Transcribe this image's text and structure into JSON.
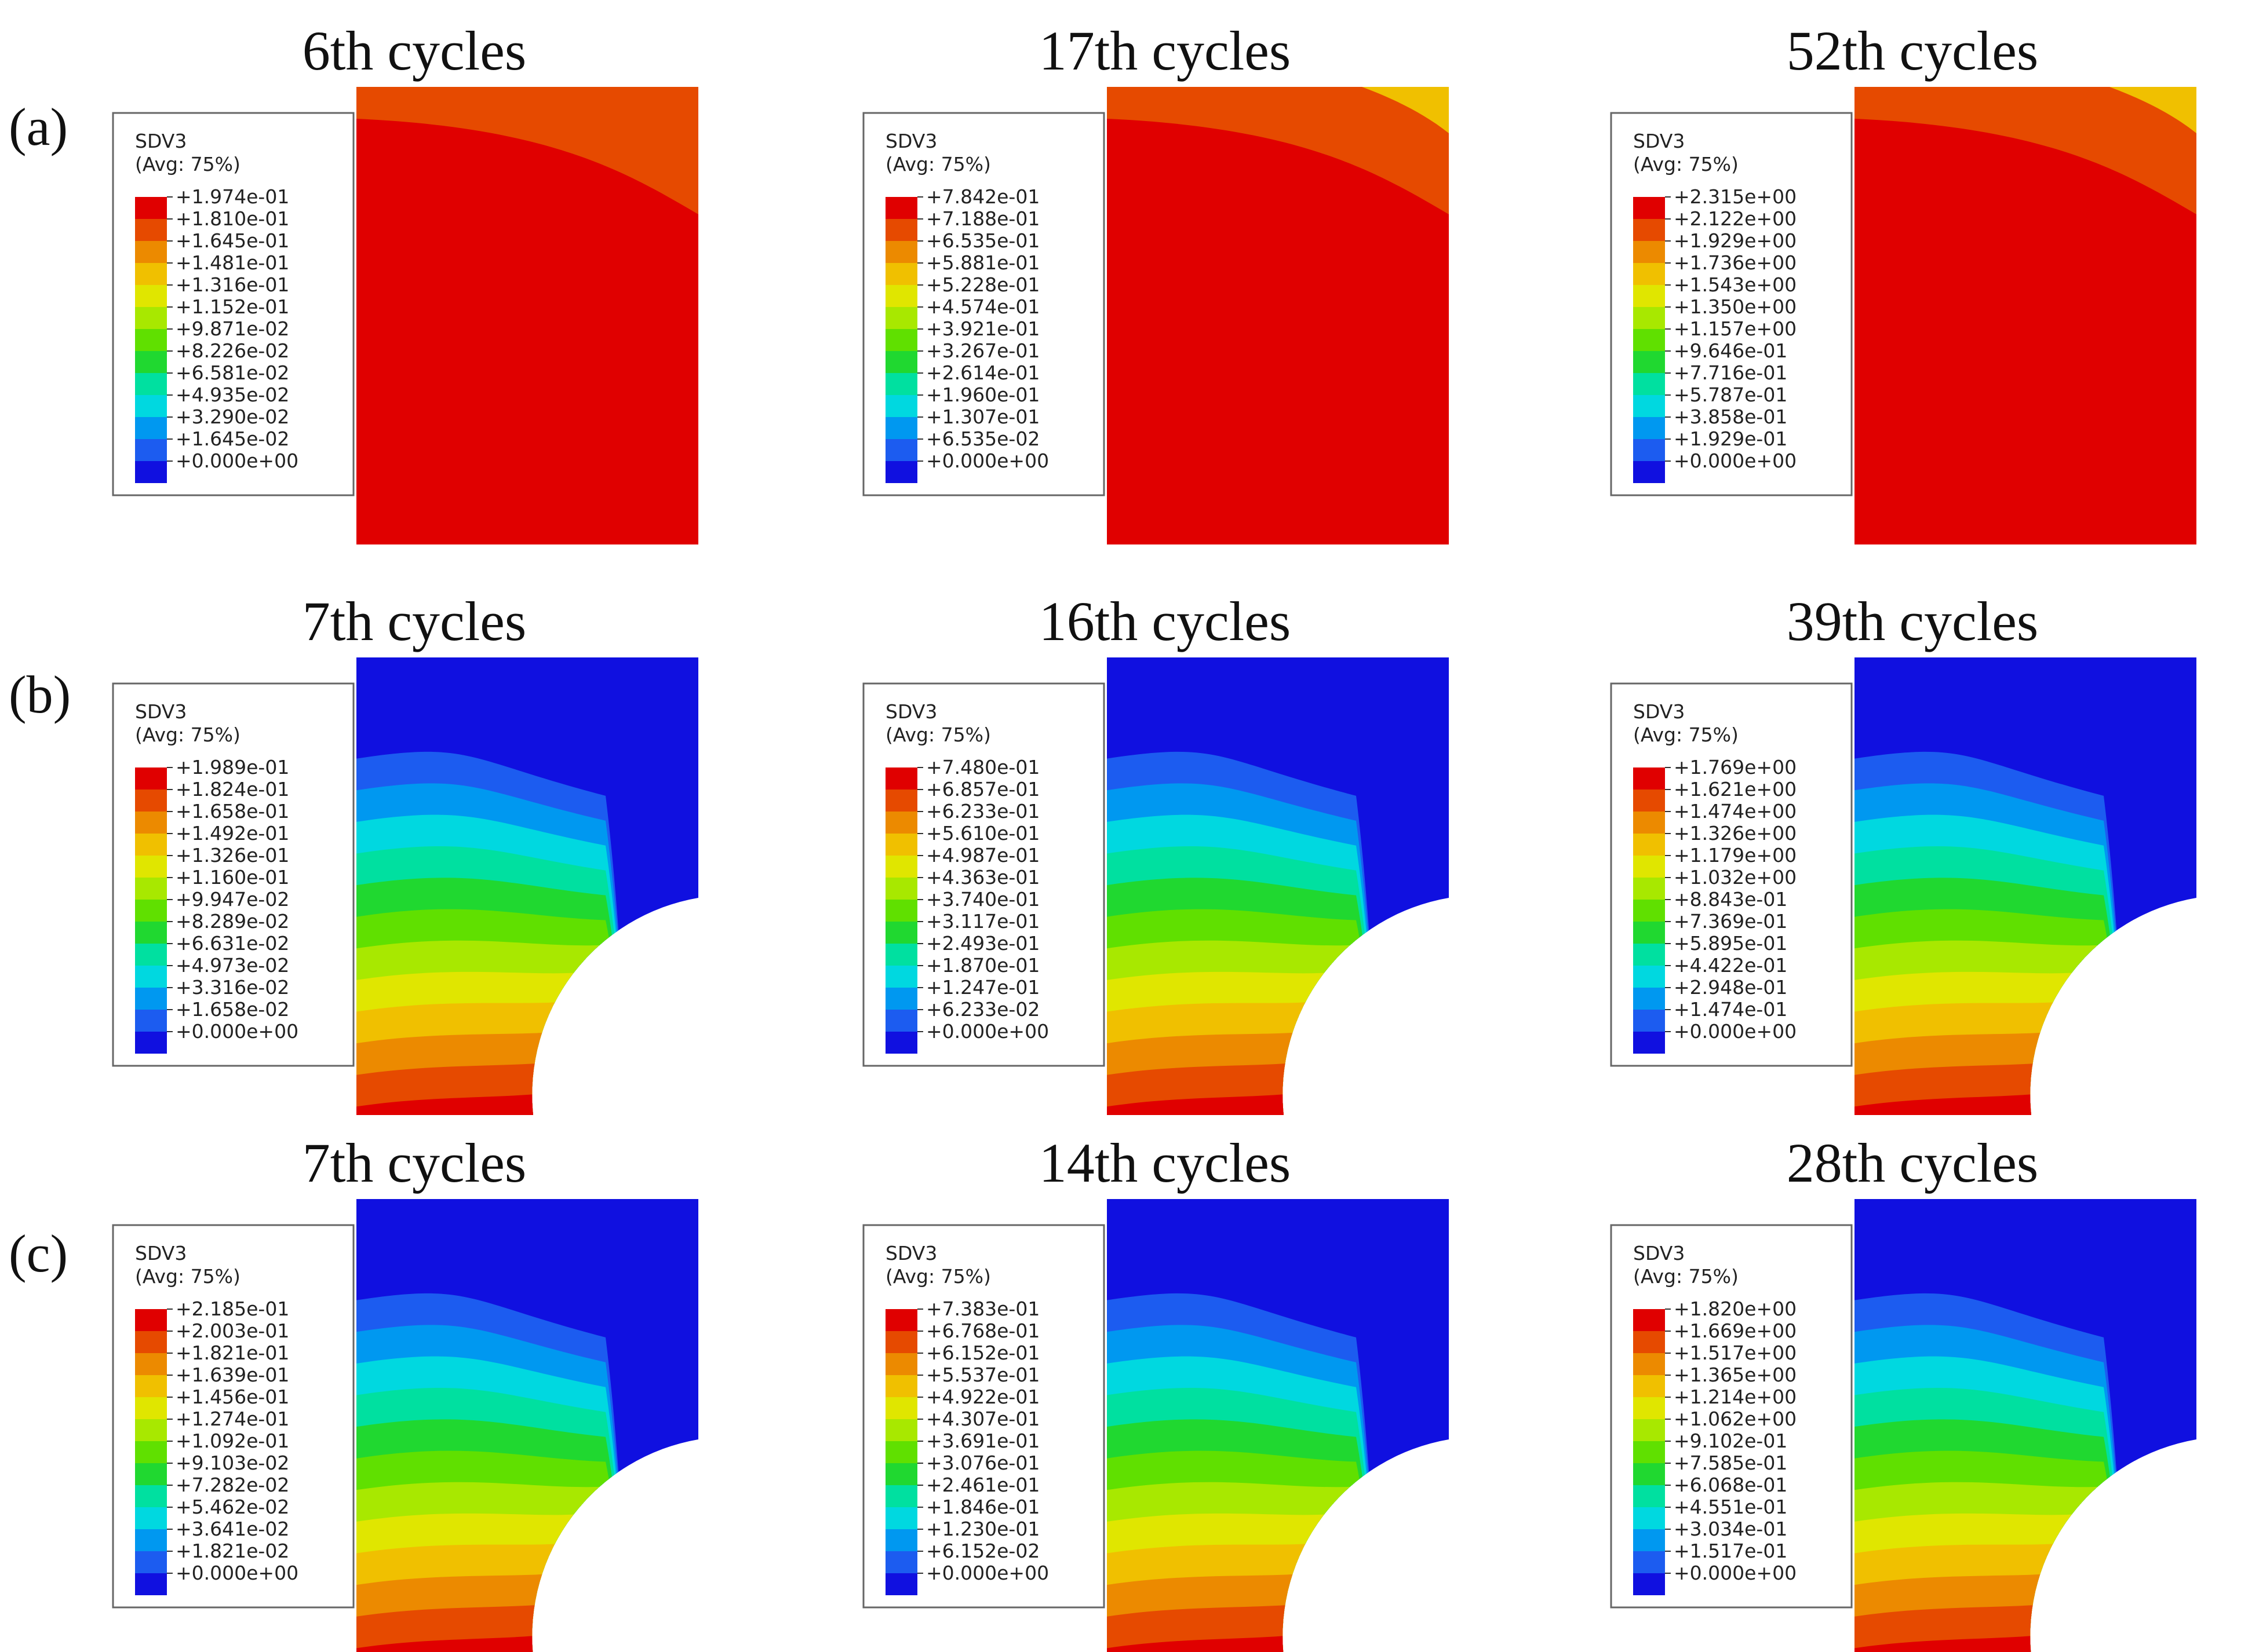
{
  "figure": {
    "rows": [
      {
        "label": "(a)",
        "geometry": "plain",
        "panels": [
          {
            "title": "6th cycles",
            "variable": "SDV3",
            "avg": "(Avg: 75%)",
            "values": [
              "+1.974e-01",
              "+1.810e-01",
              "+1.645e-01",
              "+1.481e-01",
              "+1.316e-01",
              "+1.152e-01",
              "+9.871e-02",
              "+8.226e-02",
              "+6.581e-02",
              "+4.935e-02",
              "+3.290e-02",
              "+1.645e-02",
              "+0.000e+00"
            ]
          },
          {
            "title": "17th cycles",
            "variable": "SDV3",
            "avg": "(Avg: 75%)",
            "values": [
              "+7.842e-01",
              "+7.188e-01",
              "+6.535e-01",
              "+5.881e-01",
              "+5.228e-01",
              "+4.574e-01",
              "+3.921e-01",
              "+3.267e-01",
              "+2.614e-01",
              "+1.960e-01",
              "+1.307e-01",
              "+6.535e-02",
              "+0.000e+00"
            ]
          },
          {
            "title": "52th cycles",
            "variable": "SDV3",
            "avg": "(Avg: 75%)",
            "values": [
              "+2.315e+00",
              "+2.122e+00",
              "+1.929e+00",
              "+1.736e+00",
              "+1.543e+00",
              "+1.350e+00",
              "+1.157e+00",
              "+9.646e-01",
              "+7.716e-01",
              "+5.787e-01",
              "+3.858e-01",
              "+1.929e-01",
              "+0.000e+00"
            ]
          }
        ]
      },
      {
        "label": "(b)",
        "geometry": "notched",
        "panels": [
          {
            "title": "7th cycles",
            "variable": "SDV3",
            "avg": "(Avg: 75%)",
            "values": [
              "+1.989e-01",
              "+1.824e-01",
              "+1.658e-01",
              "+1.492e-01",
              "+1.326e-01",
              "+1.160e-01",
              "+9.947e-02",
              "+8.289e-02",
              "+6.631e-02",
              "+4.973e-02",
              "+3.316e-02",
              "+1.658e-02",
              "+0.000e+00"
            ]
          },
          {
            "title": "16th cycles",
            "variable": "SDV3",
            "avg": "(Avg: 75%)",
            "values": [
              "+7.480e-01",
              "+6.857e-01",
              "+6.233e-01",
              "+5.610e-01",
              "+4.987e-01",
              "+4.363e-01",
              "+3.740e-01",
              "+3.117e-01",
              "+2.493e-01",
              "+1.870e-01",
              "+1.247e-01",
              "+6.233e-02",
              "+0.000e+00"
            ]
          },
          {
            "title": "39th cycles",
            "variable": "SDV3",
            "avg": "(Avg: 75%)",
            "values": [
              "+1.769e+00",
              "+1.621e+00",
              "+1.474e+00",
              "+1.326e+00",
              "+1.179e+00",
              "+1.032e+00",
              "+8.843e-01",
              "+7.369e-01",
              "+5.895e-01",
              "+4.422e-01",
              "+2.948e-01",
              "+1.474e-01",
              "+0.000e+00"
            ]
          }
        ]
      },
      {
        "label": "(c)",
        "geometry": "notched",
        "panels": [
          {
            "title": "7th cycles",
            "variable": "SDV3",
            "avg": "(Avg: 75%)",
            "values": [
              "+2.185e-01",
              "+2.003e-01",
              "+1.821e-01",
              "+1.639e-01",
              "+1.456e-01",
              "+1.274e-01",
              "+1.092e-01",
              "+9.103e-02",
              "+7.282e-02",
              "+5.462e-02",
              "+3.641e-02",
              "+1.821e-02",
              "+0.000e+00"
            ]
          },
          {
            "title": "14th cycles",
            "variable": "SDV3",
            "avg": "(Avg: 75%)",
            "values": [
              "+7.383e-01",
              "+6.768e-01",
              "+6.152e-01",
              "+5.537e-01",
              "+4.922e-01",
              "+4.307e-01",
              "+3.691e-01",
              "+3.076e-01",
              "+2.461e-01",
              "+1.846e-01",
              "+1.230e-01",
              "+6.152e-02",
              "+0.000e+00"
            ]
          },
          {
            "title": "28th cycles",
            "variable": "SDV3",
            "avg": "(Avg: 75%)",
            "values": [
              "+1.820e+00",
              "+1.669e+00",
              "+1.517e+00",
              "+1.365e+00",
              "+1.214e+00",
              "+1.062e+00",
              "+9.102e-01",
              "+7.585e-01",
              "+6.068e-01",
              "+4.551e-01",
              "+3.034e-01",
              "+1.517e-01",
              "+0.000e+00"
            ]
          }
        ]
      }
    ],
    "contour_colors": [
      "#e00000",
      "#e64a00",
      "#ec8a00",
      "#f0c000",
      "#e0e600",
      "#a8e800",
      "#60e000",
      "#20d830",
      "#00e0a0",
      "#00d8e0",
      "#0098f0",
      "#1c5cf0",
      "#1010e0"
    ]
  }
}
